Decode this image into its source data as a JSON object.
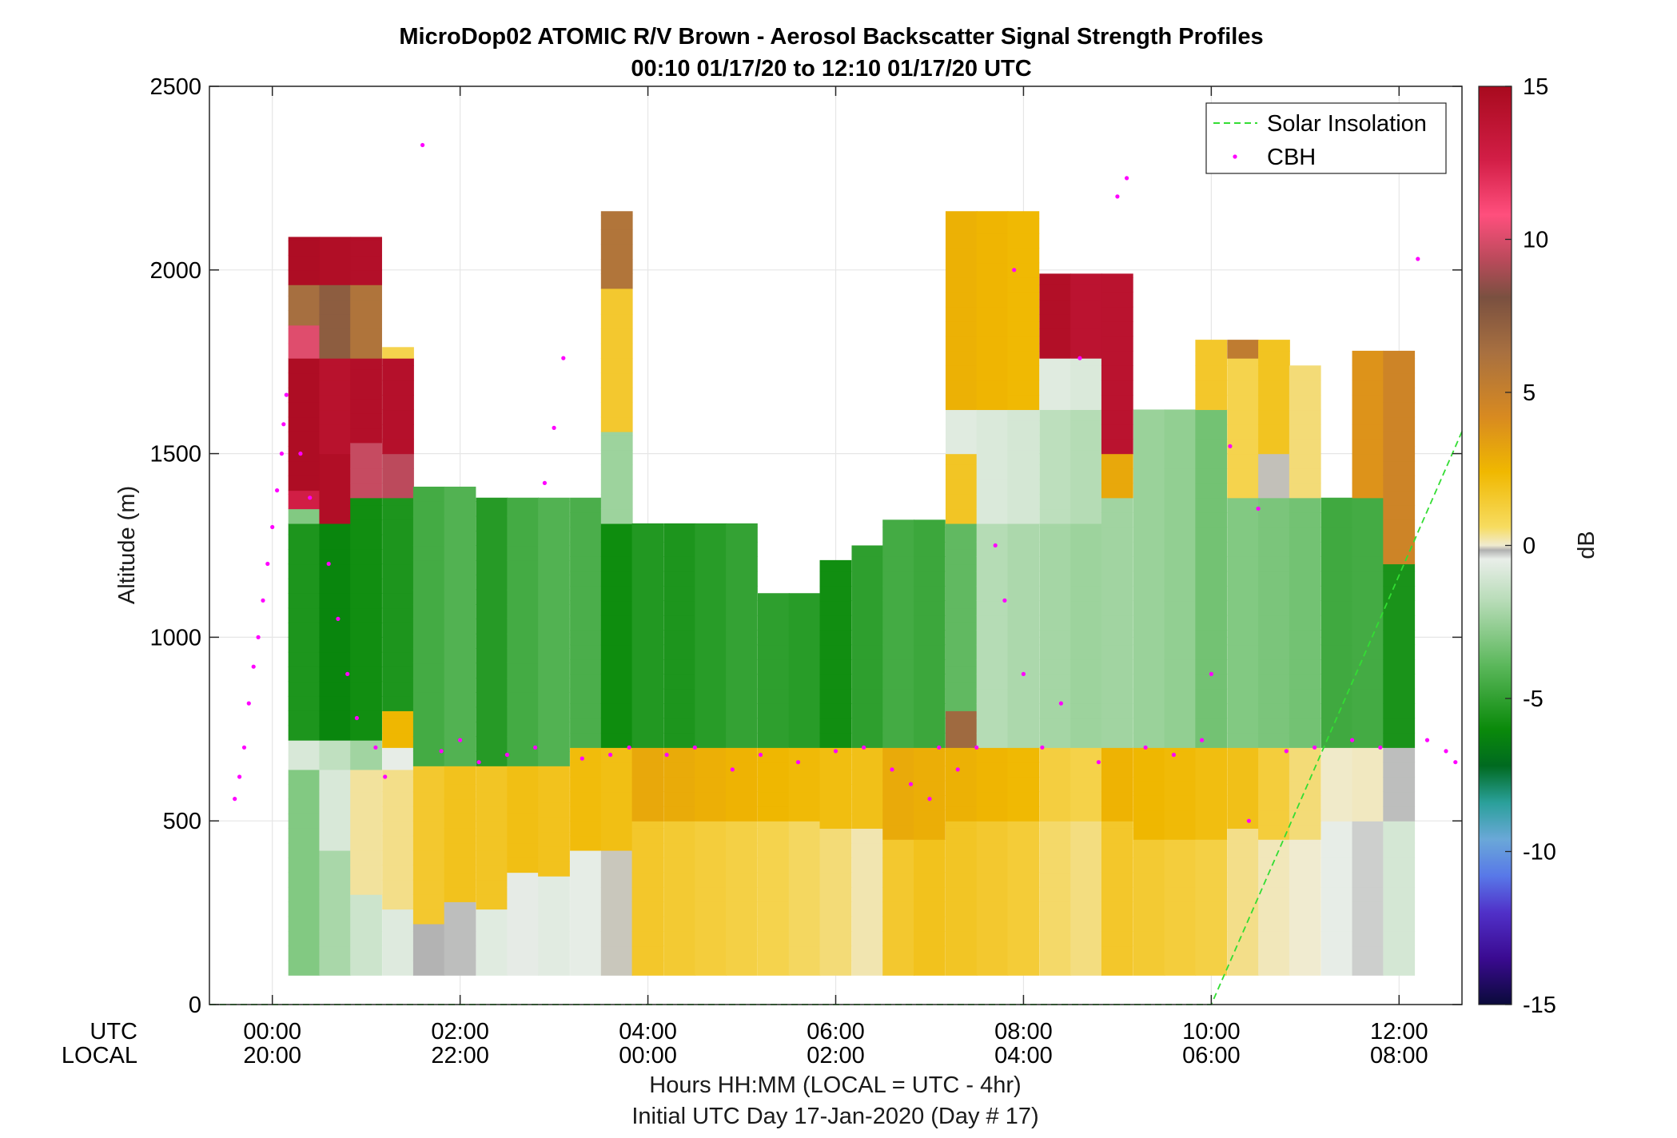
{
  "chart_data": {
    "type": "heatmap",
    "title": "MicroDop02 ATOMIC R/V Brown - Aerosol Backscatter Signal Strength Profiles",
    "subtitle": "00:10 01/17/20 to 12:10 01/17/20  UTC",
    "ylabel": "Altitude (m)",
    "xlabel": "Hours HH:MM  (LOCAL = UTC - 4hr)",
    "xlabel2": "Initial UTC Day 17-Jan-2020 (Day # 17)",
    "xrow_labels": [
      "UTC",
      "LOCAL"
    ],
    "xlim_hours": [
      -0.67,
      12.67
    ],
    "ylim": [
      0,
      2500
    ],
    "x_ticks": [
      {
        "hour": 0,
        "utc": "00:00",
        "local": "20:00"
      },
      {
        "hour": 2,
        "utc": "02:00",
        "local": "22:00"
      },
      {
        "hour": 4,
        "utc": "04:00",
        "local": "00:00"
      },
      {
        "hour": 6,
        "utc": "06:00",
        "local": "02:00"
      },
      {
        "hour": 8,
        "utc": "08:00",
        "local": "04:00"
      },
      {
        "hour": 10,
        "utc": "10:00",
        "local": "06:00"
      },
      {
        "hour": 12,
        "utc": "12:00",
        "local": "08:00"
      }
    ],
    "y_ticks": [
      "0",
      "500",
      "1000",
      "1500",
      "2000",
      "2500"
    ],
    "colorbar": {
      "label": "dB",
      "range": [
        -15,
        15
      ],
      "ticks": [
        "15",
        "10",
        "5",
        "0",
        "-5",
        "-10",
        "-15"
      ]
    },
    "legend": {
      "position": "top-right",
      "entries": [
        {
          "name": "Solar Insolation",
          "style": "dashed-line",
          "color": "#33dd33"
        },
        {
          "name": "CBH",
          "style": "dots",
          "color": "#ff00ff"
        }
      ]
    },
    "grid": true,
    "time_bins_start_hour": [
      0.17,
      0.5,
      0.83,
      1.17,
      1.5,
      1.83,
      2.17,
      2.5,
      2.83,
      3.17,
      3.5,
      3.83,
      4.17,
      4.5,
      4.83,
      5.17,
      5.5,
      5.83,
      6.17,
      6.5,
      6.83,
      7.17,
      7.5,
      7.83,
      8.17,
      8.5,
      8.83,
      9.17,
      9.5,
      9.83,
      10.17,
      10.5,
      10.83,
      11.17,
      11.5,
      11.83
    ],
    "profiles": [
      {
        "t": 0.17,
        "cells": [
          [
            80,
            640,
            -3
          ],
          [
            640,
            720,
            -1
          ],
          [
            720,
            1310,
            -5.5
          ],
          [
            1310,
            1350,
            -3
          ],
          [
            1350,
            1400,
            12
          ],
          [
            1400,
            1760,
            14.5
          ],
          [
            1760,
            1850,
            10
          ],
          [
            1850,
            1960,
            7
          ],
          [
            1960,
            2090,
            14.5
          ]
        ]
      },
      {
        "t": 0.5,
        "cells": [
          [
            80,
            420,
            -2
          ],
          [
            420,
            640,
            -0.8
          ],
          [
            640,
            720,
            -1.5
          ],
          [
            720,
            1310,
            -6
          ],
          [
            1310,
            1500,
            14.5
          ],
          [
            1500,
            1760,
            14
          ],
          [
            1760,
            1960,
            8
          ],
          [
            1960,
            2090,
            14.5
          ]
        ]
      },
      {
        "t": 0.83,
        "cells": [
          [
            80,
            300,
            -1
          ],
          [
            300,
            640,
            1.2
          ],
          [
            640,
            720,
            -2
          ],
          [
            720,
            1380,
            -5.5
          ],
          [
            1380,
            1530,
            10
          ],
          [
            1530,
            1760,
            14.5
          ],
          [
            1760,
            1960,
            7
          ],
          [
            1960,
            2090,
            14.5
          ]
        ]
      },
      {
        "t": 1.17,
        "cells": [
          [
            80,
            260,
            -0.3
          ],
          [
            260,
            640,
            1.5
          ],
          [
            640,
            700,
            0
          ],
          [
            700,
            800,
            3.5
          ],
          [
            800,
            1380,
            -5
          ],
          [
            1380,
            1500,
            10
          ],
          [
            1500,
            1760,
            14.5
          ],
          [
            1760,
            1790,
            2
          ]
        ]
      },
      {
        "t": 1.5,
        "cells": [
          [
            80,
            220,
            -0.6
          ],
          [
            220,
            650,
            1.5
          ],
          [
            650,
            1410,
            -5
          ]
        ]
      },
      {
        "t": 1.83,
        "cells": [
          [
            80,
            280,
            -0.5
          ],
          [
            280,
            650,
            2
          ],
          [
            650,
            1410,
            -4.5
          ]
        ]
      },
      {
        "t": 2.17,
        "cells": [
          [
            80,
            260,
            -1
          ],
          [
            260,
            650,
            2
          ],
          [
            650,
            1380,
            -5.5
          ]
        ]
      },
      {
        "t": 2.5,
        "cells": [
          [
            80,
            360,
            -0.5
          ],
          [
            360,
            650,
            2.5
          ],
          [
            650,
            1380,
            -4.5
          ]
        ]
      },
      {
        "t": 2.83,
        "cells": [
          [
            80,
            350,
            -0.6
          ],
          [
            350,
            650,
            2.5
          ],
          [
            650,
            1380,
            -4
          ]
        ]
      },
      {
        "t": 3.17,
        "cells": [
          [
            80,
            420,
            -0.3
          ],
          [
            420,
            700,
            3
          ],
          [
            700,
            1380,
            -4
          ]
        ]
      },
      {
        "t": 3.5,
        "cells": [
          [
            80,
            420,
            0.6
          ],
          [
            420,
            700,
            3
          ],
          [
            700,
            1310,
            -5.5
          ],
          [
            1310,
            1560,
            -2
          ],
          [
            1560,
            1950,
            2.5
          ],
          [
            1950,
            2160,
            7
          ]
        ]
      },
      {
        "t": 3.83,
        "cells": [
          [
            80,
            500,
            1.5
          ],
          [
            500,
            700,
            3
          ],
          [
            700,
            1310,
            -6
          ]
        ]
      },
      {
        "t": 4.17,
        "cells": [
          [
            80,
            500,
            1.5
          ],
          [
            500,
            700,
            3
          ],
          [
            700,
            1310,
            -6
          ]
        ]
      },
      {
        "t": 4.5,
        "cells": [
          [
            80,
            500,
            1.5
          ],
          [
            500,
            700,
            3
          ],
          [
            700,
            1310,
            -5.5
          ]
        ]
      },
      {
        "t": 4.83,
        "cells": [
          [
            80,
            500,
            1.5
          ],
          [
            500,
            700,
            3
          ],
          [
            700,
            1310,
            -5
          ]
        ]
      },
      {
        "t": 5.17,
        "cells": [
          [
            80,
            500,
            1.5
          ],
          [
            500,
            700,
            3
          ],
          [
            700,
            1120,
            -5
          ]
        ]
      },
      {
        "t": 5.5,
        "cells": [
          [
            80,
            500,
            1.5
          ],
          [
            500,
            700,
            3
          ],
          [
            700,
            1120,
            -5
          ]
        ]
      },
      {
        "t": 5.83,
        "cells": [
          [
            80,
            480,
            1.5
          ],
          [
            480,
            700,
            3
          ],
          [
            700,
            1210,
            -5.5
          ]
        ]
      },
      {
        "t": 6.17,
        "cells": [
          [
            80,
            480,
            1.2
          ],
          [
            480,
            700,
            3
          ],
          [
            700,
            1250,
            -4.5
          ]
        ]
      },
      {
        "t": 6.5,
        "cells": [
          [
            80,
            450,
            1.5
          ],
          [
            450,
            700,
            3
          ],
          [
            700,
            1320,
            -5
          ]
        ]
      },
      {
        "t": 6.83,
        "cells": [
          [
            80,
            450,
            2
          ],
          [
            450,
            700,
            3
          ],
          [
            700,
            1320,
            -5
          ]
        ]
      },
      {
        "t": 7.17,
        "cells": [
          [
            80,
            500,
            2
          ],
          [
            500,
            700,
            3
          ],
          [
            700,
            800,
            7
          ],
          [
            800,
            1310,
            -4
          ],
          [
            1310,
            1500,
            2
          ],
          [
            1500,
            1620,
            -1
          ],
          [
            1620,
            2160,
            3
          ]
        ]
      },
      {
        "t": 7.5,
        "cells": [
          [
            80,
            500,
            2
          ],
          [
            500,
            700,
            3
          ],
          [
            700,
            1310,
            -2
          ],
          [
            1310,
            1620,
            -1
          ],
          [
            1620,
            2160,
            3
          ]
        ]
      },
      {
        "t": 7.83,
        "cells": [
          [
            80,
            500,
            2
          ],
          [
            500,
            700,
            3
          ],
          [
            700,
            1310,
            -2
          ],
          [
            1310,
            1620,
            -1
          ],
          [
            1620,
            2160,
            3
          ]
        ]
      },
      {
        "t": 8.17,
        "cells": [
          [
            80,
            500,
            1.5
          ],
          [
            500,
            700,
            2
          ],
          [
            700,
            1310,
            -2
          ],
          [
            1310,
            1620,
            -1.5
          ],
          [
            1620,
            1760,
            -0.5
          ],
          [
            1760,
            1990,
            14.5
          ]
        ]
      },
      {
        "t": 8.5,
        "cells": [
          [
            80,
            500,
            1.5
          ],
          [
            500,
            700,
            2
          ],
          [
            700,
            1310,
            -2
          ],
          [
            1310,
            1620,
            -1.5
          ],
          [
            1620,
            1760,
            -0.5
          ],
          [
            1760,
            1990,
            14
          ]
        ]
      },
      {
        "t": 8.83,
        "cells": [
          [
            80,
            500,
            1.5
          ],
          [
            500,
            700,
            2.5
          ],
          [
            700,
            1380,
            -3
          ],
          [
            1380,
            1500,
            3
          ],
          [
            1500,
            1990,
            13
          ]
        ]
      },
      {
        "t": 9.17,
        "cells": [
          [
            80,
            450,
            1.5
          ],
          [
            450,
            700,
            2.5
          ],
          [
            700,
            1620,
            -3
          ]
        ]
      },
      {
        "t": 9.5,
        "cells": [
          [
            80,
            450,
            1.5
          ],
          [
            450,
            700,
            2.5
          ],
          [
            700,
            1620,
            -3
          ]
        ]
      },
      {
        "t": 9.83,
        "cells": [
          [
            80,
            450,
            1.5
          ],
          [
            450,
            700,
            2.5
          ],
          [
            700,
            1620,
            -3.5
          ],
          [
            1620,
            1810,
            2
          ]
        ]
      },
      {
        "t": 10.17,
        "cells": [
          [
            80,
            480,
            1
          ],
          [
            480,
            700,
            2.5
          ],
          [
            700,
            1380,
            -3
          ],
          [
            1380,
            1760,
            1.5
          ],
          [
            1760,
            1810,
            6
          ]
        ]
      },
      {
        "t": 10.5,
        "cells": [
          [
            80,
            450,
            0.8
          ],
          [
            450,
            700,
            2
          ],
          [
            700,
            1380,
            -3
          ],
          [
            1380,
            1500,
            0.3
          ],
          [
            1500,
            1810,
            2.5
          ]
        ]
      },
      {
        "t": 10.83,
        "cells": [
          [
            80,
            450,
            0.8
          ],
          [
            450,
            700,
            1.5
          ],
          [
            700,
            1380,
            -3
          ],
          [
            1380,
            1740,
            1.5
          ]
        ]
      },
      {
        "t": 11.17,
        "cells": [
          [
            80,
            500,
            0
          ],
          [
            500,
            700,
            1
          ],
          [
            700,
            1380,
            -4
          ]
        ]
      },
      {
        "t": 11.5,
        "cells": [
          [
            80,
            500,
            -0.8
          ],
          [
            500,
            700,
            0
          ],
          [
            700,
            1380,
            -5
          ],
          [
            1380,
            1780,
            4
          ]
        ]
      },
      {
        "t": 11.83,
        "cells": [
          [
            80,
            500,
            -1.5
          ],
          [
            500,
            700,
            -0.5
          ],
          [
            700,
            1200,
            -6
          ],
          [
            1200,
            1780,
            5
          ]
        ]
      }
    ],
    "solar_insolation_line": [
      [
        -0.67,
        0
      ],
      [
        10,
        0
      ],
      [
        12.67,
        1560
      ]
    ],
    "cbh": [
      [
        -0.4,
        560
      ],
      [
        -0.35,
        620
      ],
      [
        -0.3,
        700
      ],
      [
        -0.25,
        820
      ],
      [
        -0.2,
        920
      ],
      [
        -0.15,
        1000
      ],
      [
        -0.1,
        1100
      ],
      [
        -0.05,
        1200
      ],
      [
        0,
        1300
      ],
      [
        0.05,
        1400
      ],
      [
        0.1,
        1500
      ],
      [
        0.12,
        1580
      ],
      [
        0.15,
        1660
      ],
      [
        0.3,
        1500
      ],
      [
        0.4,
        1380
      ],
      [
        0.6,
        1200
      ],
      [
        0.7,
        1050
      ],
      [
        0.8,
        900
      ],
      [
        0.9,
        780
      ],
      [
        1.1,
        700
      ],
      [
        1.2,
        620
      ],
      [
        1.6,
        2340
      ],
      [
        1.8,
        690
      ],
      [
        2.0,
        720
      ],
      [
        2.2,
        660
      ],
      [
        2.5,
        680
      ],
      [
        2.8,
        700
      ],
      [
        2.9,
        1420
      ],
      [
        3.0,
        1570
      ],
      [
        3.1,
        1760
      ],
      [
        3.3,
        670
      ],
      [
        3.6,
        680
      ],
      [
        3.8,
        700
      ],
      [
        4.2,
        680
      ],
      [
        4.5,
        700
      ],
      [
        4.9,
        640
      ],
      [
        5.2,
        680
      ],
      [
        5.6,
        660
      ],
      [
        6.0,
        690
      ],
      [
        6.3,
        700
      ],
      [
        6.6,
        640
      ],
      [
        6.8,
        600
      ],
      [
        7.0,
        560
      ],
      [
        7.1,
        700
      ],
      [
        7.3,
        640
      ],
      [
        7.5,
        700
      ],
      [
        7.7,
        1250
      ],
      [
        7.8,
        1100
      ],
      [
        7.9,
        2000
      ],
      [
        8.0,
        900
      ],
      [
        8.2,
        700
      ],
      [
        8.4,
        820
      ],
      [
        8.6,
        1760
      ],
      [
        8.8,
        660
      ],
      [
        9.0,
        2200
      ],
      [
        9.1,
        2250
      ],
      [
        9.3,
        700
      ],
      [
        9.6,
        680
      ],
      [
        9.9,
        720
      ],
      [
        10.0,
        900
      ],
      [
        10.2,
        1520
      ],
      [
        10.4,
        500
      ],
      [
        10.5,
        1350
      ],
      [
        10.8,
        690
      ],
      [
        11.1,
        700
      ],
      [
        11.5,
        720
      ],
      [
        11.8,
        700
      ],
      [
        12.2,
        2030
      ],
      [
        12.3,
        720
      ],
      [
        12.5,
        690
      ],
      [
        12.6,
        660
      ]
    ]
  }
}
